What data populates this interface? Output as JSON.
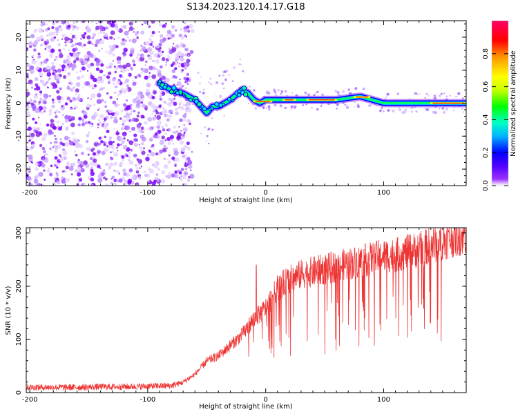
{
  "figure": {
    "title": "S134.2023.120.14.17.G18"
  },
  "chart_data": [
    {
      "type": "heatmap",
      "xlabel": "Height of straight line (km)",
      "ylabel": "Frequency (Hz)",
      "xlim": [
        -203,
        170
      ],
      "ylim": [
        -25,
        25
      ],
      "xticks": [
        -200,
        -100,
        0,
        100
      ],
      "yticks": [
        -20,
        -10,
        0,
        10,
        20
      ],
      "colorbar": {
        "label": "Normalized spectral amplitude",
        "range": [
          0,
          1
        ],
        "ticks": [
          "0.0",
          "0.2",
          "0.4",
          "0.6",
          "0.8"
        ],
        "colormap": [
          "#ffffff",
          "#9b30ff",
          "#5000ff",
          "#0000ff",
          "#00b4ff",
          "#00ffc8",
          "#00ff00",
          "#c8ff00",
          "#ffff00",
          "#ff9600",
          "#ff0000",
          "#ff0064"
        ]
      },
      "ridge": {
        "x": [
          -90,
          -80,
          -70,
          -60,
          -50,
          -45,
          -40,
          -30,
          -20,
          -15,
          -10,
          -5,
          0,
          20,
          40,
          60,
          80,
          90,
          100,
          120,
          140,
          160,
          170
        ],
        "y": [
          6,
          4,
          3,
          1,
          -3,
          -1,
          -1,
          1,
          4,
          3,
          1,
          0,
          1,
          1,
          1,
          1,
          2,
          1,
          0,
          0,
          0,
          0,
          0
        ]
      },
      "noise_region": {
        "x_range": [
          -203,
          -70
        ],
        "level": "low",
        "scatter_extends_to": -15
      }
    },
    {
      "type": "line",
      "xlabel": "Height of straight line (km)",
      "ylabel": "SNR (10 * v/v)",
      "xlim": [
        -203,
        170
      ],
      "ylim": [
        0,
        310
      ],
      "xticks": [
        -200,
        -100,
        0,
        100
      ],
      "yticks": [
        0,
        100,
        200,
        300
      ],
      "color": "#ee3333",
      "series": [
        {
          "x": [
            -203,
            -180,
            -160,
            -140,
            -120,
            -100,
            -80,
            -70,
            -60,
            -50,
            -40,
            -30,
            -20,
            -10,
            0,
            10,
            20,
            30,
            40,
            50,
            60,
            70,
            80,
            90,
            100,
            110,
            120,
            130,
            140,
            150,
            160,
            170
          ],
          "y": [
            10,
            10,
            10,
            11,
            11,
            12,
            13,
            20,
            35,
            60,
            70,
            90,
            110,
            140,
            160,
            200,
            215,
            225,
            230,
            235,
            240,
            245,
            250,
            255,
            260,
            262,
            268,
            272,
            280,
            288,
            295,
            300
          ]
        }
      ],
      "spikes": {
        "x_range": [
          -20,
          150
        ],
        "min_dip_to": 65
      },
      "annotations": [
        {
          "x": -8,
          "y": 240,
          "type": "spike"
        }
      ]
    }
  ]
}
